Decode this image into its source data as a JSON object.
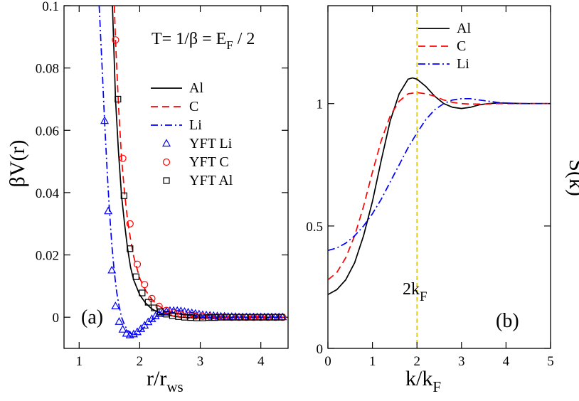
{
  "chart_data": [
    {
      "type": "line",
      "panel_label": "(a)",
      "xlabel": "r/r",
      "xlabel_sub": "ws",
      "ylabel": "βV(r)",
      "xlim": [
        0.75,
        4.45
      ],
      "ylim": [
        -0.01,
        0.1
      ],
      "xticks": [
        1,
        2,
        3,
        4
      ],
      "yticks": [
        0,
        0.02,
        0.04,
        0.06,
        0.08,
        0.1
      ],
      "ytick_labels": [
        "0",
        "0.02",
        "0.04",
        "0.06",
        "0.08",
        "0.1"
      ],
      "annotation": "T= 1/β = E",
      "annotation_sub": "F",
      "annotation_tail": " / 2",
      "series": [
        {
          "name": "Al",
          "kind": "line",
          "color": "#000000",
          "dash": "",
          "x": [
            1.55,
            1.6,
            1.65,
            1.7,
            1.75,
            1.8,
            1.85,
            1.9,
            2.0,
            2.1,
            2.2,
            2.3,
            2.4,
            2.5,
            2.6,
            2.7,
            2.8,
            2.9,
            3.0,
            3.2,
            3.4,
            3.6,
            3.8,
            4.0,
            4.2,
            4.4
          ],
          "y": [
            0.1,
            0.07,
            0.053,
            0.039,
            0.03,
            0.022,
            0.016,
            0.012,
            0.0072,
            0.0045,
            0.0027,
            0.0016,
            0.001,
            0.0006,
            0.0002,
            0.0,
            -0.0001,
            -0.0002,
            -0.0002,
            -0.0001,
            0.0,
            0.0,
            0.0,
            0.0,
            0.0,
            0.0
          ]
        },
        {
          "name": "C",
          "kind": "line",
          "color": "#ff0000",
          "dash": "10,6",
          "x": [
            1.58,
            1.6,
            1.65,
            1.7,
            1.75,
            1.8,
            1.85,
            1.9,
            2.0,
            2.1,
            2.2,
            2.3,
            2.4,
            2.5,
            2.6,
            2.7,
            2.8,
            2.9,
            3.0,
            3.2,
            3.4,
            3.6,
            3.8,
            4.0,
            4.2,
            4.4
          ],
          "y": [
            0.1,
            0.089,
            0.068,
            0.051,
            0.04,
            0.031,
            0.025,
            0.0195,
            0.0125,
            0.0085,
            0.0058,
            0.0038,
            0.0026,
            0.0018,
            0.0012,
            0.0008,
            0.0005,
            0.0003,
            0.0002,
            0.0001,
            0.0,
            0.0,
            0.0,
            0.0,
            0.0,
            0.0
          ]
        },
        {
          "name": "Li",
          "kind": "line",
          "color": "#0000ff",
          "dash": "10,4,2,4",
          "x": [
            1.33,
            1.38,
            1.42,
            1.46,
            1.5,
            1.54,
            1.58,
            1.62,
            1.66,
            1.7,
            1.75,
            1.8,
            1.85,
            1.9,
            1.95,
            2.0,
            2.1,
            2.2,
            2.3,
            2.4,
            2.5,
            2.6,
            2.7,
            2.8,
            2.9,
            3.0,
            3.2,
            3.4,
            3.6,
            3.8,
            4.0,
            4.2,
            4.4
          ],
          "y": [
            0.1,
            0.08,
            0.063,
            0.048,
            0.034,
            0.023,
            0.0145,
            0.008,
            0.0035,
            0.0,
            -0.0025,
            -0.0042,
            -0.0052,
            -0.0055,
            -0.0052,
            -0.0045,
            -0.0028,
            -0.001,
            0.0005,
            0.0015,
            0.002,
            0.0021,
            0.002,
            0.0017,
            0.0013,
            0.001,
            0.0005,
            0.0002,
            0.0001,
            0.0,
            0.0,
            0.0,
            0.0
          ]
        },
        {
          "name": "YFT Li",
          "kind": "marker",
          "marker": "triangle",
          "color": "#0000ff",
          "x": [
            1.42,
            1.48,
            1.54,
            1.6,
            1.66,
            1.72,
            1.78,
            1.84,
            1.9,
            1.96,
            2.02,
            2.08,
            2.14,
            2.2,
            2.26,
            2.32,
            2.38,
            2.44,
            2.5,
            2.56,
            2.62,
            2.68,
            2.74,
            2.8,
            2.86,
            2.92,
            2.98,
            3.04,
            3.1,
            3.16,
            3.22,
            3.28,
            3.34,
            3.4,
            3.46,
            3.52,
            3.58,
            3.64,
            3.7,
            3.76,
            3.82,
            3.88,
            3.94,
            4.0,
            4.06,
            4.12,
            4.18,
            4.24,
            4.3,
            4.36
          ],
          "y": [
            0.063,
            0.034,
            0.015,
            0.0035,
            -0.0015,
            -0.004,
            -0.0053,
            -0.0058,
            -0.0055,
            -0.0048,
            -0.0038,
            -0.0027,
            -0.0016,
            -0.0006,
            0.0003,
            0.001,
            0.0015,
            0.0018,
            0.002,
            0.002,
            0.002,
            0.0019,
            0.0017,
            0.0015,
            0.0013,
            0.0011,
            0.0009,
            0.0007,
            0.0006,
            0.0005,
            0.0004,
            0.0003,
            0.0002,
            0.0002,
            0.0001,
            0.0001,
            0.0001,
            0.0,
            0.0,
            0.0,
            0.0,
            0.0,
            0.0,
            0.0,
            0.0,
            0.0,
            0.0,
            0.0,
            0.0,
            0.0
          ]
        },
        {
          "name": "YFT C",
          "kind": "marker",
          "marker": "circle",
          "color": "#ff0000",
          "x": [
            1.6,
            1.72,
            1.84,
            1.96,
            2.08,
            2.2,
            2.32,
            2.44,
            2.56,
            2.68,
            2.8,
            2.92,
            3.04,
            3.16,
            3.28,
            3.4,
            3.52,
            3.64,
            3.76,
            3.88,
            4.0,
            4.12,
            4.24,
            4.36
          ],
          "y": [
            0.089,
            0.051,
            0.03,
            0.017,
            0.0105,
            0.006,
            0.0035,
            0.0022,
            0.0014,
            0.0009,
            0.0006,
            0.0004,
            0.0003,
            0.0002,
            0.0001,
            0.0001,
            0.0,
            0.0,
            0.0,
            0.0,
            0.0,
            0.0,
            0.0,
            0.0
          ]
        },
        {
          "name": "YFT Al",
          "kind": "marker",
          "marker": "square",
          "color": "#000000",
          "x": [
            1.64,
            1.74,
            1.84,
            1.94,
            2.04,
            2.14,
            2.24,
            2.34,
            2.44,
            2.54,
            2.64,
            2.74,
            2.84,
            2.94,
            3.04,
            3.14,
            3.24,
            3.34,
            3.44,
            3.54,
            3.64,
            3.74,
            3.84,
            3.94,
            4.04,
            4.14,
            4.24,
            4.34
          ],
          "y": [
            0.07,
            0.039,
            0.022,
            0.013,
            0.0078,
            0.0048,
            0.003,
            0.0018,
            0.001,
            0.0005,
            0.0002,
            0.0,
            -0.0001,
            -0.0002,
            -0.0002,
            -0.0001,
            -0.0001,
            0.0,
            0.0,
            0.0,
            0.0,
            0.0,
            0.0,
            0.0,
            0.0,
            0.0,
            0.0,
            0.0
          ]
        }
      ]
    },
    {
      "type": "line",
      "panel_label": "(b)",
      "xlabel": "k/k",
      "xlabel_sub": "F",
      "ylabel": "S(k)",
      "xlim": [
        0,
        5
      ],
      "ylim": [
        0,
        1.4
      ],
      "xticks": [
        0,
        1,
        2,
        3,
        4,
        5
      ],
      "yticks": [
        0,
        0.5,
        1
      ],
      "ytick_labels": [
        "0",
        "0.5",
        "1"
      ],
      "vline": {
        "x": 2,
        "color": "#e0c000",
        "label": "2k",
        "label_sub": "F"
      },
      "series": [
        {
          "name": "Al",
          "kind": "line",
          "color": "#000000",
          "dash": "",
          "x": [
            0,
            0.2,
            0.4,
            0.6,
            0.8,
            1.0,
            1.2,
            1.4,
            1.6,
            1.8,
            1.9,
            2.0,
            2.2,
            2.4,
            2.6,
            2.8,
            3.0,
            3.2,
            3.4,
            3.6,
            3.8,
            4.0,
            4.2,
            4.4,
            4.6,
            4.8,
            5.0
          ],
          "y": [
            0.22,
            0.24,
            0.28,
            0.35,
            0.46,
            0.6,
            0.77,
            0.93,
            1.04,
            1.1,
            1.105,
            1.1,
            1.07,
            1.03,
            1.0,
            0.985,
            0.98,
            0.985,
            0.995,
            1.0,
            1.002,
            1.002,
            1.001,
            1.0,
            1.0,
            1.0,
            1.0
          ]
        },
        {
          "name": "C",
          "kind": "line",
          "color": "#ff0000",
          "dash": "10,6",
          "x": [
            0,
            0.2,
            0.4,
            0.6,
            0.8,
            1.0,
            1.2,
            1.4,
            1.6,
            1.8,
            2.0,
            2.2,
            2.4,
            2.6,
            2.8,
            3.0,
            3.2,
            3.4,
            3.6,
            3.8,
            4.0,
            4.2,
            4.4,
            4.6,
            4.8,
            5.0
          ],
          "y": [
            0.28,
            0.31,
            0.37,
            0.46,
            0.58,
            0.72,
            0.85,
            0.95,
            1.01,
            1.04,
            1.045,
            1.04,
            1.03,
            1.015,
            1.005,
            1.0,
            0.998,
            0.998,
            0.999,
            1.0,
            1.0,
            1.0,
            1.0,
            1.0,
            1.0,
            1.0
          ]
        },
        {
          "name": "Li",
          "kind": "line",
          "color": "#0000ff",
          "dash": "10,4,2,4",
          "x": [
            0,
            0.2,
            0.4,
            0.6,
            0.8,
            1.0,
            1.2,
            1.4,
            1.6,
            1.8,
            2.0,
            2.2,
            2.4,
            2.6,
            2.8,
            3.0,
            3.2,
            3.4,
            3.6,
            3.8,
            4.0,
            4.2,
            4.4,
            4.6,
            4.8,
            5.0
          ],
          "y": [
            0.4,
            0.41,
            0.43,
            0.46,
            0.5,
            0.55,
            0.61,
            0.68,
            0.75,
            0.82,
            0.88,
            0.935,
            0.975,
            1.0,
            1.015,
            1.02,
            1.02,
            1.015,
            1.01,
            1.005,
            1.002,
            1.0,
            1.0,
            1.0,
            1.0,
            1.0
          ]
        }
      ]
    }
  ]
}
